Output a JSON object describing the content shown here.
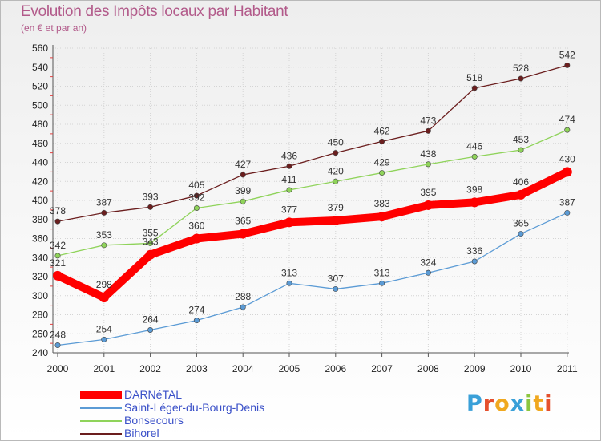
{
  "title": "Evolution des Impôts locaux par Habitant",
  "subtitle": "(en € et par an)",
  "logo": {
    "text": "Proxiti",
    "colors": [
      "#3aa0d8",
      "#e5502d",
      "#f0a81f",
      "#3aa0d8",
      "#8cc63f",
      "#f0a81f",
      "#e5502d"
    ]
  },
  "chart_data": {
    "type": "line",
    "x": [
      "2000",
      "2001",
      "2002",
      "2003",
      "2004",
      "2005",
      "2006",
      "2007",
      "2008",
      "2009",
      "2010",
      "2011"
    ],
    "ylim": [
      240,
      560
    ],
    "yticks": [
      240,
      260,
      280,
      300,
      320,
      340,
      360,
      380,
      400,
      420,
      440,
      460,
      480,
      500,
      520,
      540,
      560
    ],
    "grid": true,
    "legend_position": "bottom-left",
    "series": [
      {
        "name": "Bihorel",
        "color": "#6b1e1e",
        "values": [
          378,
          387,
          393,
          405,
          427,
          436,
          450,
          462,
          473,
          518,
          528,
          542
        ]
      },
      {
        "name": "Bonsecours",
        "color": "#8fd35a",
        "values": [
          342,
          353,
          355,
          392,
          399,
          411,
          420,
          429,
          438,
          446,
          453,
          474
        ]
      },
      {
        "name": "Saint-Léger-du-Bourg-Denis",
        "color": "#5b9bd5",
        "values": [
          248,
          254,
          264,
          274,
          288,
          313,
          307,
          313,
          324,
          336,
          365,
          387
        ]
      },
      {
        "name": "DARNéTAL",
        "color": "#ff0000",
        "values": [
          321,
          298,
          343,
          360,
          365,
          377,
          379,
          383,
          395,
          398,
          406,
          430
        ]
      }
    ]
  },
  "legend": [
    {
      "label": "DARNéTAL",
      "color": "#ff0000"
    },
    {
      "label": "Saint-Léger-du-Bourg-Denis",
      "color": "#5b9bd5"
    },
    {
      "label": "Bonsecours",
      "color": "#8fd35a"
    },
    {
      "label": "Bihorel",
      "color": "#6b1e1e"
    }
  ]
}
